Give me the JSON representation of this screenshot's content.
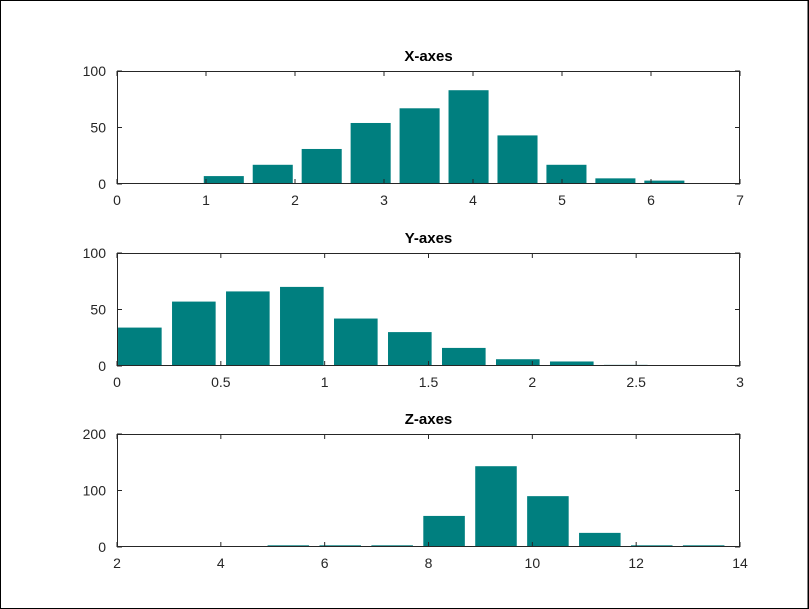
{
  "figure": {
    "background": "#ffffff",
    "border_color": "#000000"
  },
  "chart_data": [
    {
      "type": "bar",
      "title": "X-axes",
      "xlabel": "",
      "ylabel": "",
      "xlim": [
        0,
        7
      ],
      "ylim": [
        0,
        100
      ],
      "xticks": [
        0,
        1,
        2,
        3,
        4,
        5,
        6,
        7
      ],
      "yticks": [
        0,
        50,
        100
      ],
      "bar_width": 0.45,
      "color": "#007f7f",
      "x": [
        1.2,
        1.75,
        2.3,
        2.85,
        3.4,
        3.95,
        4.5,
        5.05,
        5.6,
        6.15
      ],
      "values": [
        7,
        17,
        31,
        54,
        67,
        83,
        43,
        17,
        5,
        3
      ]
    },
    {
      "type": "bar",
      "title": "Y-axes",
      "xlabel": "",
      "ylabel": "",
      "xlim": [
        0,
        3
      ],
      "ylim": [
        0,
        100
      ],
      "xticks": [
        0,
        0.5,
        1,
        1.5,
        2,
        2.5,
        3
      ],
      "yticks": [
        0,
        50,
        100
      ],
      "bar_width": 0.21,
      "color": "#007f7f",
      "x": [
        0.11,
        0.37,
        0.63,
        0.89,
        1.15,
        1.41,
        1.67,
        1.93,
        2.19,
        2.45
      ],
      "values": [
        34,
        57,
        66,
        70,
        42,
        30,
        16,
        6,
        4,
        1
      ]
    },
    {
      "type": "bar",
      "title": "Z-axes",
      "xlabel": "",
      "ylabel": "",
      "xlim": [
        2,
        14
      ],
      "ylim": [
        0,
        200
      ],
      "xticks": [
        2,
        4,
        6,
        8,
        10,
        12,
        14
      ],
      "yticks": [
        0,
        100,
        200
      ],
      "bar_width": 0.8,
      "color": "#007f7f",
      "x": [
        4.3,
        5.3,
        6.3,
        7.3,
        8.3,
        9.3,
        10.3,
        11.3,
        12.3,
        13.3
      ],
      "values": [
        1,
        3,
        3,
        3,
        55,
        143,
        90,
        25,
        3,
        3
      ]
    }
  ]
}
